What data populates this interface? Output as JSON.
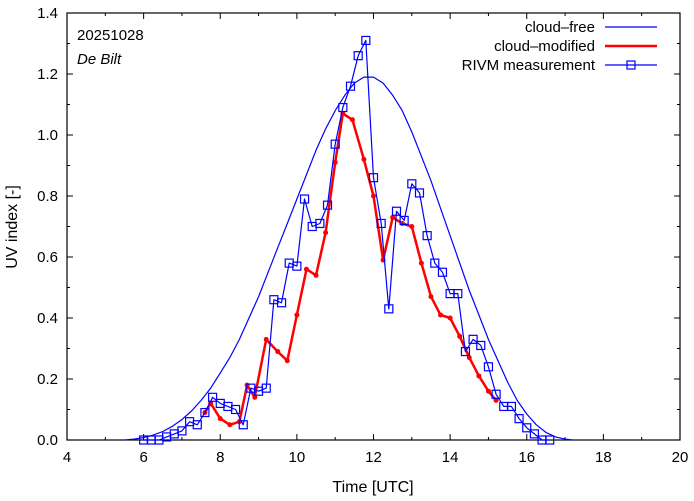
{
  "chart_data": {
    "type": "line",
    "xlabel": "Time  [UTC]",
    "ylabel": "UV index  [-]",
    "xlim": [
      4,
      20
    ],
    "ylim": [
      0.0,
      1.4
    ],
    "xticks": [
      "4",
      "6",
      "8",
      "10",
      "12",
      "14",
      "16",
      "18",
      "20"
    ],
    "xtick_values": [
      4,
      6,
      8,
      10,
      12,
      14,
      16,
      18,
      20
    ],
    "yticks": [
      "0.0",
      "0.2",
      "0.4",
      "0.6",
      "0.8",
      "1.0",
      "1.2",
      "1.4"
    ],
    "ytick_values": [
      0.0,
      0.2,
      0.4,
      0.6,
      0.8,
      1.0,
      1.2,
      1.4
    ],
    "annotations": {
      "date": "20251028",
      "location": "De Bilt"
    },
    "legend_position": "top-right",
    "colors": {
      "cloud_free": "#0000ff",
      "cloud_modified": "#ff0000",
      "measurement": "#0000ff"
    },
    "series": [
      {
        "name": "cloud–free",
        "style": "line",
        "x": [
          5.5,
          5.75,
          6.0,
          6.25,
          6.5,
          6.75,
          7.0,
          7.25,
          7.5,
          7.75,
          8.0,
          8.25,
          8.5,
          8.75,
          9.0,
          9.25,
          9.5,
          9.75,
          10.0,
          10.25,
          10.5,
          10.75,
          11.0,
          11.25,
          11.5,
          11.75,
          12.0,
          12.25,
          12.5,
          12.75,
          13.0,
          13.25,
          13.5,
          13.75,
          14.0,
          14.25,
          14.5,
          14.75,
          15.0,
          15.25,
          15.5,
          15.75,
          16.0,
          16.25,
          16.5,
          16.75,
          17.0,
          17.2
        ],
        "y": [
          0.0,
          0.003,
          0.008,
          0.016,
          0.028,
          0.045,
          0.067,
          0.095,
          0.13,
          0.17,
          0.22,
          0.27,
          0.33,
          0.4,
          0.47,
          0.55,
          0.63,
          0.71,
          0.79,
          0.87,
          0.95,
          1.02,
          1.08,
          1.13,
          1.17,
          1.19,
          1.19,
          1.17,
          1.13,
          1.08,
          1.01,
          0.93,
          0.85,
          0.76,
          0.67,
          0.58,
          0.49,
          0.41,
          0.33,
          0.26,
          0.19,
          0.13,
          0.085,
          0.05,
          0.025,
          0.01,
          0.003,
          0.0
        ]
      },
      {
        "name": "cloud–modified",
        "style": "line-dots",
        "x": [
          7.6,
          7.75,
          8.0,
          8.25,
          8.5,
          8.7,
          8.9,
          9.2,
          9.5,
          9.75,
          10.0,
          10.25,
          10.5,
          10.75,
          11.0,
          11.2,
          11.45,
          11.75,
          12.0,
          12.25,
          12.5,
          12.75,
          13.0,
          13.25,
          13.5,
          13.75,
          14.0,
          14.25,
          14.5,
          14.75,
          15.0,
          15.2
        ],
        "y": [
          0.09,
          0.12,
          0.07,
          0.05,
          0.06,
          0.18,
          0.14,
          0.33,
          0.29,
          0.26,
          0.41,
          0.56,
          0.54,
          0.68,
          0.91,
          1.07,
          1.05,
          0.92,
          0.8,
          0.59,
          0.73,
          0.71,
          0.7,
          0.58,
          0.47,
          0.41,
          0.4,
          0.34,
          0.27,
          0.21,
          0.16,
          0.13
        ]
      },
      {
        "name": "RIVM measurement",
        "style": "line-squares",
        "x": [
          6.0,
          6.2,
          6.4,
          6.6,
          6.8,
          7.0,
          7.2,
          7.4,
          7.6,
          7.8,
          8.0,
          8.2,
          8.4,
          8.6,
          8.8,
          9.0,
          9.2,
          9.4,
          9.6,
          9.8,
          10.0,
          10.2,
          10.4,
          10.6,
          10.8,
          11.0,
          11.2,
          11.4,
          11.6,
          11.8,
          12.0,
          12.2,
          12.4,
          12.6,
          12.8,
          13.0,
          13.2,
          13.4,
          13.6,
          13.8,
          14.0,
          14.2,
          14.4,
          14.6,
          14.8,
          15.0,
          15.2,
          15.4,
          15.6,
          15.8,
          16.0,
          16.2,
          16.4,
          16.6
        ],
        "y": [
          0.0,
          0.0,
          0.0,
          0.01,
          0.02,
          0.03,
          0.06,
          0.05,
          0.09,
          0.14,
          0.12,
          0.11,
          0.1,
          0.05,
          0.17,
          0.16,
          0.17,
          0.46,
          0.45,
          0.58,
          0.57,
          0.79,
          0.7,
          0.71,
          0.77,
          0.97,
          1.09,
          1.16,
          1.26,
          1.31,
          0.86,
          0.71,
          0.43,
          0.75,
          0.72,
          0.84,
          0.81,
          0.67,
          0.58,
          0.55,
          0.48,
          0.48,
          0.29,
          0.33,
          0.31,
          0.24,
          0.15,
          0.11,
          0.11,
          0.07,
          0.04,
          0.02,
          0.0,
          0.0
        ]
      }
    ]
  }
}
